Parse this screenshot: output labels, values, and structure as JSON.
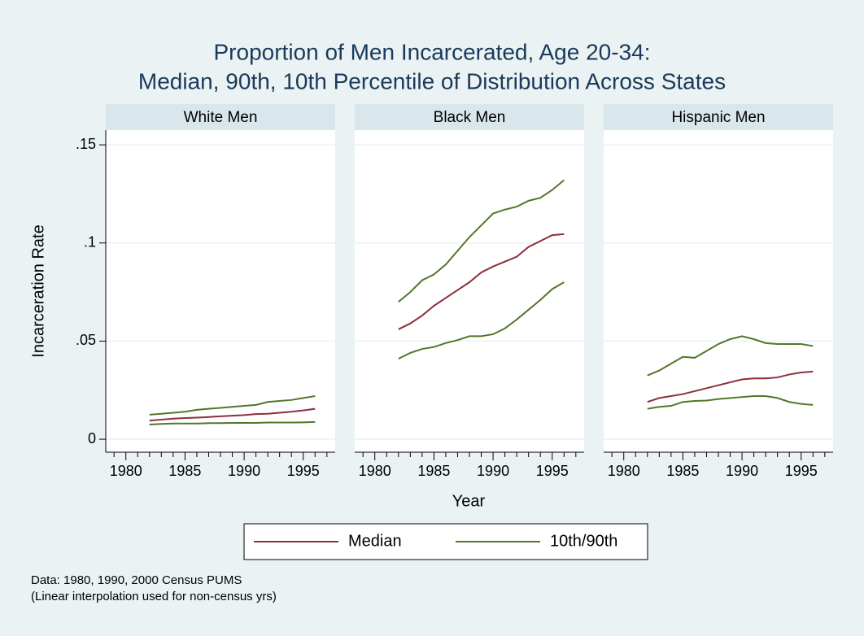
{
  "chart_data": {
    "type": "line",
    "title": "Proportion of Men Incarcerated, Age 20-34:",
    "subtitle": "Median, 90th, 10th Percentile of Distribution Across States",
    "y_label": "Incarceration Rate",
    "x_label": "Year",
    "notes": [
      "Data: 1980, 1990, 2000 Census PUMS",
      "(Linear interpolation used for non-census yrs)"
    ],
    "x": [
      1982,
      1983,
      1984,
      1985,
      1986,
      1987,
      1988,
      1989,
      1990,
      1991,
      1992,
      1993,
      1994,
      1995,
      1996
    ],
    "xlim": [
      1978.3,
      1997.7
    ],
    "xticks": [
      1980,
      1985,
      1990,
      1995
    ],
    "xminorticks": [
      1979,
      1981,
      1982,
      1983,
      1984,
      1986,
      1987,
      1988,
      1989,
      1991,
      1992,
      1993,
      1994,
      1996,
      1997
    ],
    "ylim": [
      -0.0066,
      0.1575
    ],
    "yticks": [
      {
        "value": 0,
        "label": "0"
      },
      {
        "value": 0.05,
        "label": ".05"
      },
      {
        "value": 0.1,
        "label": ".1"
      },
      {
        "value": 0.15,
        "label": ".15"
      }
    ],
    "grid": true,
    "legend_position": "bottom",
    "series": [
      {
        "name": "Median",
        "color": "#8c2f3b"
      },
      {
        "name": "10th/90th",
        "color": "#53762c"
      }
    ],
    "panels": [
      {
        "title": "White Men",
        "median": [
          0.0095,
          0.01,
          0.0105,
          0.0108,
          0.011,
          0.0113,
          0.0117,
          0.012,
          0.0123,
          0.0128,
          0.013,
          0.0135,
          0.014,
          0.0147,
          0.0155
        ],
        "p90": [
          0.0125,
          0.013,
          0.0135,
          0.014,
          0.015,
          0.0155,
          0.016,
          0.0165,
          0.017,
          0.0175,
          0.019,
          0.0195,
          0.02,
          0.021,
          0.022
        ],
        "p10": [
          0.0075,
          0.0078,
          0.008,
          0.008,
          0.008,
          0.0082,
          0.0082,
          0.0083,
          0.0083,
          0.0083,
          0.0085,
          0.0085,
          0.0085,
          0.0086,
          0.0088
        ]
      },
      {
        "title": "Black Men",
        "median": [
          0.056,
          0.059,
          0.063,
          0.068,
          0.072,
          0.076,
          0.08,
          0.085,
          0.088,
          0.0905,
          0.093,
          0.098,
          0.101,
          0.104,
          0.1045
        ],
        "p90": [
          0.07,
          0.075,
          0.081,
          0.084,
          0.089,
          0.096,
          0.103,
          0.109,
          0.115,
          0.117,
          0.1185,
          0.1215,
          0.123,
          0.127,
          0.132
        ],
        "p10": [
          0.041,
          0.044,
          0.046,
          0.047,
          0.049,
          0.0505,
          0.0525,
          0.0525,
          0.0535,
          0.0565,
          0.061,
          0.066,
          0.071,
          0.0765,
          0.08
        ]
      },
      {
        "title": "Hispanic Men",
        "median": [
          0.019,
          0.021,
          0.022,
          0.023,
          0.0245,
          0.026,
          0.0275,
          0.029,
          0.0305,
          0.031,
          0.031,
          0.0315,
          0.033,
          0.034,
          0.0345
        ],
        "p90": [
          0.0325,
          0.035,
          0.0385,
          0.042,
          0.0415,
          0.045,
          0.0485,
          0.051,
          0.0525,
          0.051,
          0.049,
          0.0485,
          0.0485,
          0.0485,
          0.0475
        ],
        "p10": [
          0.0155,
          0.0165,
          0.017,
          0.019,
          0.0195,
          0.0197,
          0.0205,
          0.021,
          0.0215,
          0.022,
          0.022,
          0.021,
          0.019,
          0.018,
          0.0175
        ]
      }
    ]
  }
}
